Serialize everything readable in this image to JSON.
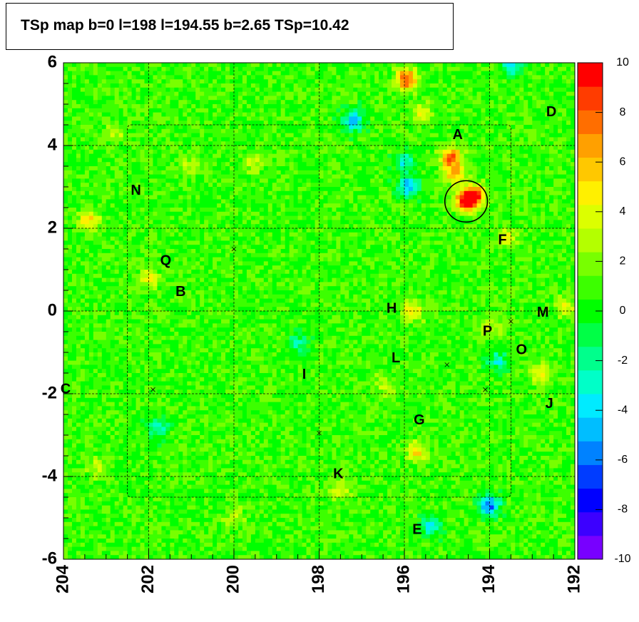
{
  "title": "TSp map b=0 l=198 l=194.55 b=2.65 TSp=10.42",
  "chart_data": {
    "type": "heatmap",
    "title": "TSp map b=0 l=198 l=194.55 b=2.65 TSp=10.42",
    "xlabel": "",
    "ylabel": "",
    "xlim": [
      204,
      192
    ],
    "ylim": [
      -6,
      6
    ],
    "x_ticks": [
      "204",
      "202",
      "200",
      "198",
      "196",
      "194",
      "192"
    ],
    "y_ticks": [
      "6",
      "4",
      "2",
      "0",
      "-2",
      "-4",
      "-6"
    ],
    "colorbar": {
      "range": [
        -10,
        10
      ],
      "ticks": [
        "10",
        "8",
        "6",
        "4",
        "2",
        "0",
        "-2",
        "-4",
        "-6",
        "-8",
        "-10"
      ]
    },
    "background_level": 0.8,
    "hotspots": [
      {
        "l": 194.55,
        "b": 2.65,
        "ts": 10.4
      },
      {
        "l": 194.35,
        "b": 2.8,
        "ts": 8.5
      },
      {
        "l": 194.9,
        "b": 3.7,
        "ts": 8.0
      },
      {
        "l": 194.8,
        "b": 3.3,
        "ts": 6.0
      },
      {
        "l": 195.95,
        "b": 5.6,
        "ts": 9.0
      },
      {
        "l": 195.6,
        "b": 4.8,
        "ts": 4.0
      },
      {
        "l": 203.4,
        "b": 2.2,
        "ts": 5.5
      },
      {
        "l": 195.8,
        "b": 0.0,
        "ts": 5.0
      },
      {
        "l": 193.6,
        "b": 1.8,
        "ts": 4.0
      },
      {
        "l": 192.2,
        "b": 0.1,
        "ts": 4.0
      },
      {
        "l": 192.8,
        "b": -1.5,
        "ts": 5.0
      },
      {
        "l": 195.7,
        "b": -3.4,
        "ts": 5.0
      },
      {
        "l": 202.0,
        "b": 0.8,
        "ts": 4.0
      },
      {
        "l": 197.5,
        "b": -4.3,
        "ts": 4.0
      },
      {
        "l": 194.0,
        "b": -0.4,
        "ts": 3.5
      },
      {
        "l": 196.5,
        "b": -1.8,
        "ts": 3.0
      },
      {
        "l": 199.5,
        "b": 3.6,
        "ts": 3.5
      },
      {
        "l": 201.0,
        "b": 3.5,
        "ts": 3.0
      },
      {
        "l": 202.8,
        "b": 4.3,
        "ts": 3.0
      },
      {
        "l": 203.2,
        "b": -3.8,
        "ts": 3.0
      },
      {
        "l": 200.0,
        "b": -5.0,
        "ts": 3.0
      }
    ],
    "coldspots": [
      {
        "l": 197.2,
        "b": 4.6,
        "ts": -5.0
      },
      {
        "l": 195.9,
        "b": 3.0,
        "ts": -5.0
      },
      {
        "l": 194.0,
        "b": -4.7,
        "ts": -6.0
      },
      {
        "l": 195.4,
        "b": -5.2,
        "ts": -3.5
      },
      {
        "l": 196.0,
        "b": 3.6,
        "ts": -3.0
      },
      {
        "l": 201.8,
        "b": -2.8,
        "ts": -3.0
      },
      {
        "l": 198.5,
        "b": -0.8,
        "ts": -2.5
      },
      {
        "l": 193.5,
        "b": 5.9,
        "ts": -3.0
      },
      {
        "l": 193.8,
        "b": -1.2,
        "ts": -2.5
      }
    ],
    "labels": [
      {
        "text": "A",
        "l": 194.75,
        "b": 4.25
      },
      {
        "text": "B",
        "l": 201.25,
        "b": 0.45
      },
      {
        "text": "C",
        "l": 203.95,
        "b": -1.9
      },
      {
        "text": "D",
        "l": 192.55,
        "b": 4.8
      },
      {
        "text": "E",
        "l": 195.7,
        "b": -5.3
      },
      {
        "text": "F",
        "l": 193.7,
        "b": 1.7
      },
      {
        "text": "G",
        "l": 195.65,
        "b": -2.65
      },
      {
        "text": "H",
        "l": 196.3,
        "b": 0.05
      },
      {
        "text": "I",
        "l": 198.35,
        "b": -1.55
      },
      {
        "text": "J",
        "l": 192.6,
        "b": -2.25
      },
      {
        "text": "K",
        "l": 197.55,
        "b": -3.95
      },
      {
        "text": "L",
        "l": 196.2,
        "b": -1.15
      },
      {
        "text": "M",
        "l": 192.75,
        "b": -0.05
      },
      {
        "text": "N",
        "l": 202.3,
        "b": 2.9
      },
      {
        "text": "O",
        "l": 193.25,
        "b": -0.95
      },
      {
        "text": "P",
        "l": 194.05,
        "b": -0.5
      },
      {
        "text": "Q",
        "l": 201.6,
        "b": 1.2
      }
    ],
    "crosses": [
      {
        "l": 200.0,
        "b": 1.5
      },
      {
        "l": 201.9,
        "b": -1.9
      },
      {
        "l": 198.0,
        "b": -2.95
      },
      {
        "l": 195.0,
        "b": -1.3
      },
      {
        "l": 194.1,
        "b": -1.9
      },
      {
        "l": 193.5,
        "b": -0.25
      }
    ],
    "circle": {
      "l": 194.55,
      "b": 2.65,
      "r": 0.5
    },
    "roi_box": {
      "l_min": 193.5,
      "l_max": 202.5,
      "b_min": -4.5,
      "b_max": 4.5
    },
    "grid": true
  }
}
